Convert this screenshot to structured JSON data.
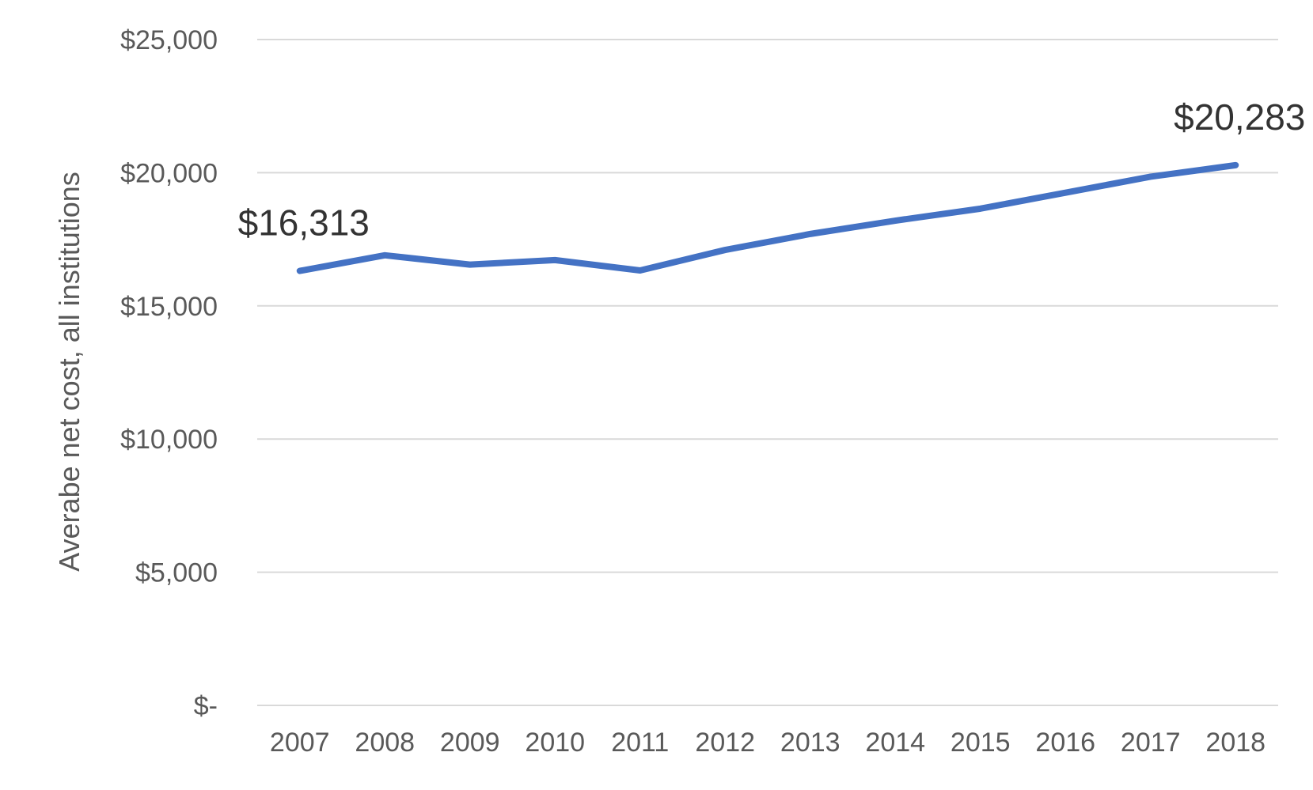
{
  "chart_data": {
    "type": "line",
    "title": "",
    "xlabel": "",
    "ylabel": "Averabe net cost, all institutions",
    "categories": [
      "2007",
      "2008",
      "2009",
      "2010",
      "2011",
      "2012",
      "2013",
      "2014",
      "2015",
      "2016",
      "2017",
      "2018"
    ],
    "series": [
      {
        "values": [
          16313,
          16900,
          16550,
          16720,
          16330,
          17100,
          17700,
          18200,
          18650,
          19250,
          19850,
          20283
        ],
        "color": "#4472C4"
      }
    ],
    "ylim": [
      0,
      25000
    ],
    "yticks": [
      0,
      5000,
      10000,
      15000,
      20000,
      25000
    ],
    "ytick_labels": [
      "$-",
      "$5,000",
      "$10,000",
      "$15,000",
      "$20,000",
      "$25,000"
    ],
    "data_labels": [
      {
        "category": "2007",
        "text": "$16,313"
      },
      {
        "category": "2018",
        "text": "$20,283"
      }
    ],
    "grid": true,
    "legend": "none"
  }
}
